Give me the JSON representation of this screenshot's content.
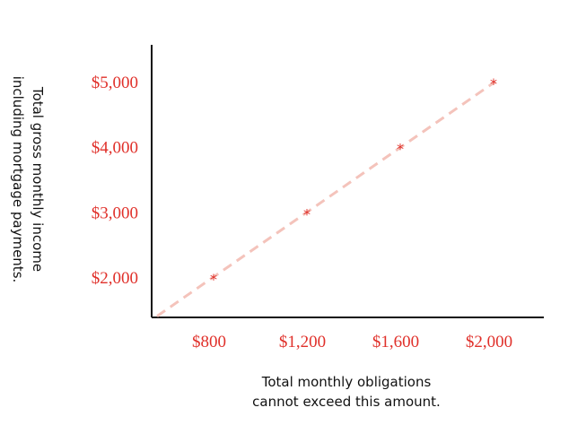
{
  "chart_data": {
    "type": "line",
    "title": "",
    "xlabel_lines": [
      "Total monthly obligations",
      "cannot exceed this amount."
    ],
    "ylabel_lines": [
      "Total gross monthly income",
      "including mortgage payments."
    ],
    "x_ticks": [
      {
        "value": 800,
        "label": "$800"
      },
      {
        "value": 1200,
        "label": "$1,200"
      },
      {
        "value": 1600,
        "label": "$1,600"
      },
      {
        "value": 2000,
        "label": "$2,000"
      }
    ],
    "y_ticks": [
      {
        "value": 2000,
        "label": "$2,000"
      },
      {
        "value": 3000,
        "label": "$3,000"
      },
      {
        "value": 4000,
        "label": "$4,000"
      },
      {
        "value": 5000,
        "label": "$5,000"
      }
    ],
    "xlim": [
      550,
      2200
    ],
    "ylim": [
      1400,
      5500
    ],
    "series": [
      {
        "x": [
          800,
          1200,
          1600,
          2000
        ],
        "y": [
          2000,
          3000,
          4000,
          5000
        ],
        "marker": "*",
        "marker_color": "#e0302a",
        "line_style": "dashed",
        "line_color": "#f4c3bb"
      }
    ],
    "trend_line": {
      "from": [
        550,
        1400
      ],
      "to": [
        2000,
        5000
      ]
    },
    "grid": false,
    "tick_label_color": "#e0302a",
    "axis_color": "#111111"
  }
}
